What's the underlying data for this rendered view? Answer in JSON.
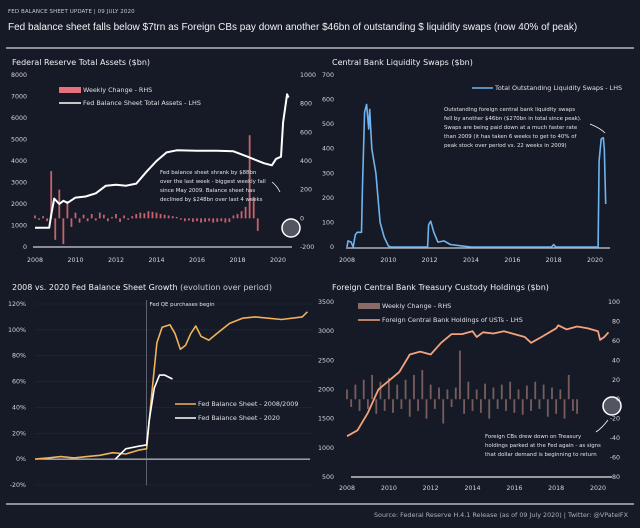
{
  "header": {
    "kicker": "FED BALANCE SHEET UPDATE  |  09 JULY 2020",
    "title": "Fed balance sheet falls below $7trn as Foreign CBs pay down another $46bn of outstanding $ liquidity swaps (now 40% of peak)"
  },
  "footer": {
    "source": "Source: Federal Reserve H.4.1 Release (as of 09 July 2020) | Twitter: @VPatelFX"
  },
  "colors": {
    "bg": "#151a26",
    "fed_line": "#ffffff",
    "fed_weekly": "#e8707a",
    "swaps": "#6fb4ef",
    "growth_2008": "#f0b25a",
    "growth_2020": "#ffffff",
    "ust_line": "#f4a27c",
    "ust_weekly": "#8a6a66"
  },
  "chart_data": [
    {
      "type": "line",
      "title": "Federal Reserve Total Assets ($bn)",
      "xticks": [
        "2008",
        "2010",
        "2012",
        "2014",
        "2016",
        "2018",
        "2020"
      ],
      "ylim": [
        0,
        8000
      ],
      "yticks": [
        "0",
        "1000",
        "2000",
        "3000",
        "4000",
        "5000",
        "6000",
        "7000",
        "8000"
      ],
      "y2lim": [
        -200,
        1000
      ],
      "y2ticks": [
        "-200",
        "0",
        "200",
        "400",
        "600",
        "800",
        "1000"
      ],
      "legend": [
        "Weekly Change - RHS",
        "Fed Balance Sheet Total Assets - LHS"
      ],
      "annotation": [
        "Fed balance sheet shrank by $88bn",
        "over the last week - biggest weekly fall",
        "since May 2009. Balance sheet has",
        "declined by $248bn over last 4 weeks"
      ],
      "series": [
        {
          "name": "Fed Balance Sheet Total Assets - LHS",
          "axis": "left",
          "points": [
            [
              2008,
              900
            ],
            [
              2008.7,
              900
            ],
            [
              2008.8,
              1500
            ],
            [
              2008.95,
              2250
            ],
            [
              2009.2,
              2000
            ],
            [
              2009.4,
              2150
            ],
            [
              2009.6,
              2050
            ],
            [
              2010,
              2300
            ],
            [
              2010.5,
              2350
            ],
            [
              2011,
              2500
            ],
            [
              2011.5,
              2850
            ],
            [
              2012,
              2900
            ],
            [
              2012.5,
              2850
            ],
            [
              2013,
              2950
            ],
            [
              2013.5,
              3500
            ],
            [
              2014,
              4000
            ],
            [
              2014.5,
              4400
            ],
            [
              2015,
              4500
            ],
            [
              2016,
              4480
            ],
            [
              2017,
              4480
            ],
            [
              2017.8,
              4450
            ],
            [
              2018.5,
              4200
            ],
            [
              2019.3,
              3900
            ],
            [
              2019.7,
              3800
            ],
            [
              2019.9,
              4100
            ],
            [
              2020.15,
              4200
            ],
            [
              2020.25,
              5800
            ],
            [
              2020.45,
              7100
            ],
            [
              2020.52,
              6950
            ]
          ]
        },
        {
          "name": "Weekly Change - RHS",
          "axis": "right",
          "start": 2008,
          "step": 0.2,
          "values": [
            20,
            -10,
            15,
            -20,
            330,
            -150,
            200,
            -180,
            120,
            -60,
            40,
            -30,
            25,
            -20,
            30,
            -15,
            40,
            25,
            -20,
            10,
            30,
            -25,
            20,
            -10,
            15,
            30,
            40,
            35,
            50,
            45,
            40,
            30,
            25,
            20,
            15,
            10,
            -10,
            -20,
            -15,
            -25,
            -20,
            -30,
            -25,
            -20,
            -30,
            -25,
            -20,
            -30,
            -25,
            20,
            30,
            50,
            80,
            580,
            150,
            -88
          ]
        }
      ]
    },
    {
      "type": "line",
      "title": "Central Bank Liquidity Swaps ($bn)",
      "xticks": [
        "2008",
        "2010",
        "2012",
        "2014",
        "2016",
        "2018",
        "2020"
      ],
      "ylim": [
        0,
        700
      ],
      "yticks": [
        "0",
        "100",
        "200",
        "300",
        "400",
        "500",
        "600",
        "700"
      ],
      "legend": [
        "Total Outstanding Liquidity Swaps - LHS"
      ],
      "annotation": [
        "Outstanding foreign central bank liquidity swaps",
        "fell by another $46bn ($270bn in total since peak).",
        "Swaps are being paid down at a much faster rate",
        "than 2009 (it has taken 6 weeks to get to 40% of",
        "peak stock over period vs. 22 weeks in 2009)"
      ],
      "series": [
        {
          "name": "Total Outstanding Liquidity Swaps - LHS",
          "points": [
            [
              2008,
              0
            ],
            [
              2008.05,
              25
            ],
            [
              2008.2,
              20
            ],
            [
              2008.3,
              0
            ],
            [
              2008.4,
              50
            ],
            [
              2008.5,
              60
            ],
            [
              2008.7,
              60
            ],
            [
              2008.75,
              250
            ],
            [
              2008.85,
              550
            ],
            [
              2008.95,
              580
            ],
            [
              2009.05,
              480
            ],
            [
              2009.1,
              560
            ],
            [
              2009.2,
              400
            ],
            [
              2009.4,
              300
            ],
            [
              2009.5,
              200
            ],
            [
              2009.6,
              100
            ],
            [
              2009.8,
              40
            ],
            [
              2010,
              5
            ],
            [
              2010.1,
              0
            ],
            [
              2011.9,
              0
            ],
            [
              2011.95,
              90
            ],
            [
              2012.05,
              105
            ],
            [
              2012.2,
              60
            ],
            [
              2012.4,
              20
            ],
            [
              2012.7,
              25
            ],
            [
              2013,
              10
            ],
            [
              2013.5,
              5
            ],
            [
              2014,
              0
            ],
            [
              2017.9,
              0
            ],
            [
              2018,
              10
            ],
            [
              2018.1,
              0
            ],
            [
              2020.15,
              0
            ],
            [
              2020.2,
              350
            ],
            [
              2020.3,
              440
            ],
            [
              2020.4,
              445
            ],
            [
              2020.45,
              400
            ],
            [
              2020.52,
              175
            ]
          ]
        }
      ]
    },
    {
      "type": "line",
      "title": "2008 vs. 2020 Fed Balance Sheet Growth",
      "subtitle": "(evolution over period)",
      "xlim": [
        0,
        106
      ],
      "ylim": [
        -20,
        120
      ],
      "yticks": [
        "-20%",
        "0%",
        "20%",
        "40%",
        "60%",
        "80%",
        "100%",
        "120%"
      ],
      "vline": {
        "x": 43,
        "label": "Fed QE purchases begin"
      },
      "legend": [
        "Fed Balance Sheet - 2008/2009",
        "Fed Balance Sheet - 2020"
      ],
      "series": [
        {
          "name": "Fed Balance Sheet - 2008/2009",
          "points": [
            [
              0,
              0
            ],
            [
              5,
              1
            ],
            [
              10,
              2
            ],
            [
              15,
              1
            ],
            [
              20,
              2
            ],
            [
              25,
              3
            ],
            [
              30,
              5
            ],
            [
              35,
              4
            ],
            [
              40,
              7
            ],
            [
              43,
              8
            ],
            [
              45,
              50
            ],
            [
              47,
              90
            ],
            [
              49,
              102
            ],
            [
              52,
              104
            ],
            [
              54,
              97
            ],
            [
              56,
              85
            ],
            [
              58,
              88
            ],
            [
              60,
              97
            ],
            [
              62,
              103
            ],
            [
              64,
              95
            ],
            [
              67,
              92
            ],
            [
              70,
              97
            ],
            [
              75,
              105
            ],
            [
              80,
              109
            ],
            [
              85,
              110
            ],
            [
              95,
              108
            ],
            [
              103,
              110
            ],
            [
              105,
              114
            ]
          ]
        },
        {
          "name": "Fed Balance Sheet - 2020",
          "points": [
            [
              31,
              0
            ],
            [
              35,
              8
            ],
            [
              40,
              10
            ],
            [
              43,
              11
            ],
            [
              44,
              30
            ],
            [
              46,
              55
            ],
            [
              48,
              65
            ],
            [
              50,
              65
            ],
            [
              53,
              62
            ]
          ]
        }
      ]
    },
    {
      "type": "line",
      "title": "Foreign Central Bank Treasury Custody Holdings ($bn)",
      "xticks": [
        "2008",
        "2010",
        "2012",
        "2014",
        "2016",
        "2018",
        "2020"
      ],
      "ylim": [
        500,
        3500
      ],
      "yticks": [
        "500",
        "1000",
        "1500",
        "2000",
        "2500",
        "3000",
        "3500"
      ],
      "y2lim": [
        -80,
        100
      ],
      "y2ticks": [
        "-80",
        "-60",
        "-40",
        "-20",
        "0",
        "20",
        "40",
        "60",
        "80",
        "100"
      ],
      "legend": [
        "Weekly Change - RHS",
        "Foreign Central Bank Holdings of USTs - LHS"
      ],
      "annotation": [
        "Foreign CBs drew down on Treasury",
        "holdings parked at the Fed again - as signs",
        "that dollar demand is beginning to return"
      ],
      "series": [
        {
          "name": "Foreign Central Bank Holdings of USTs - LHS",
          "axis": "left",
          "points": [
            [
              2008,
              1200
            ],
            [
              2008.5,
              1300
            ],
            [
              2009,
              1600
            ],
            [
              2009.5,
              2000
            ],
            [
              2010,
              2150
            ],
            [
              2010.5,
              2300
            ],
            [
              2011,
              2600
            ],
            [
              2011.5,
              2650
            ],
            [
              2012,
              2600
            ],
            [
              2012.5,
              2800
            ],
            [
              2013,
              2950
            ],
            [
              2013.5,
              2950
            ],
            [
              2014,
              3000
            ],
            [
              2014.2,
              2900
            ],
            [
              2014.5,
              2980
            ],
            [
              2015,
              2960
            ],
            [
              2015.5,
              3000
            ],
            [
              2016,
              2950
            ],
            [
              2016.5,
              2900
            ],
            [
              2016.8,
              2800
            ],
            [
              2017.3,
              2900
            ],
            [
              2018,
              3050
            ],
            [
              2018.1,
              3100
            ],
            [
              2018.5,
              3030
            ],
            [
              2019,
              3080
            ],
            [
              2019.5,
              3050
            ],
            [
              2020,
              3000
            ],
            [
              2020.1,
              2850
            ],
            [
              2020.3,
              2900
            ],
            [
              2020.5,
              2980
            ]
          ]
        },
        {
          "name": "Weekly Change - RHS",
          "axis": "right",
          "start": 2008,
          "step": 0.2,
          "values": [
            10,
            -8,
            15,
            -12,
            20,
            -10,
            25,
            -15,
            18,
            -12,
            22,
            -14,
            15,
            -10,
            20,
            -18,
            25,
            -12,
            30,
            -20,
            15,
            -10,
            12,
            -25,
            10,
            -8,
            12,
            50,
            -15,
            18,
            -12,
            10,
            -14,
            16,
            -20,
            12,
            -10,
            15,
            -12,
            18,
            -14,
            10,
            -16,
            14,
            -12,
            18,
            -10,
            15,
            -18,
            12,
            -15,
            10,
            -20,
            25,
            -12,
            -15
          ]
        }
      ]
    }
  ]
}
